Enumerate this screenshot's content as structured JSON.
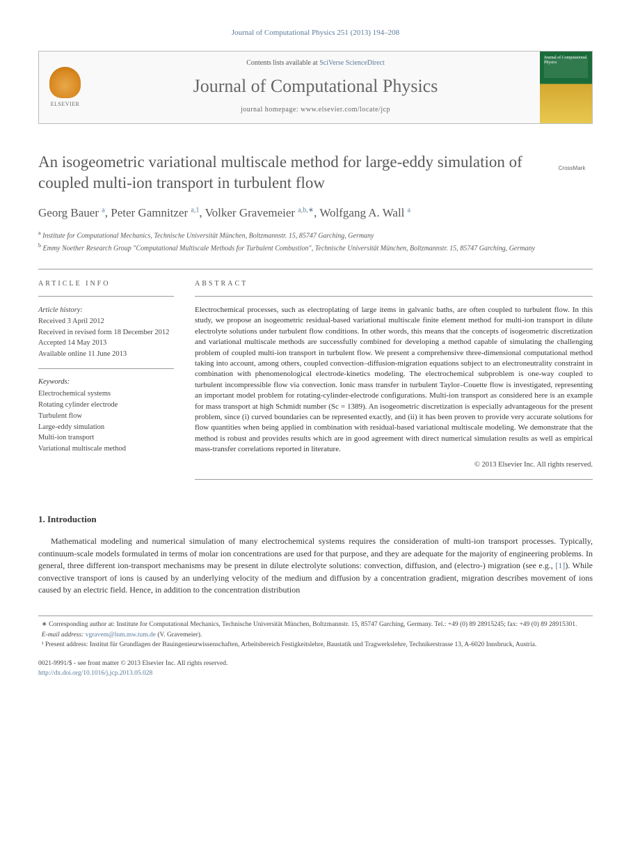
{
  "header_ref": {
    "text": "Journal of Computational Physics 251 (2013) 194–208",
    "color": "#5b7a9a"
  },
  "header_box": {
    "contents_prefix": "Contents lists available at ",
    "contents_link": "SciVerse ScienceDirect",
    "journal_name": "Journal of Computational Physics",
    "homepage_label": "journal homepage: www.elsevier.com/locate/jcp",
    "publisher_label": "ELSEVIER",
    "cover_text": "Journal of Computational Physics"
  },
  "title": "An isogeometric variational multiscale method for large-eddy simulation of coupled multi-ion transport in turbulent flow",
  "crossmark_label": "CrossMark",
  "authors_html": "Georg Bauer <sup>a</sup>, Peter Gamnitzer <sup>a,1</sup>, Volker Gravemeier <sup>a,b,∗</sup>, Wolfgang A. Wall <sup>a</sup>",
  "affiliations": {
    "a": "Institute for Computational Mechanics, Technische Universität München, Boltzmannstr. 15, 85747 Garching, Germany",
    "b": "Emmy Noether Research Group \"Computational Multiscale Methods for Turbulent Combustion\", Technische Universität München, Boltzmannstr. 15, 85747 Garching, Germany"
  },
  "article_info": {
    "section_label": "ARTICLE INFO",
    "history_label": "Article history:",
    "history": [
      "Received 3 April 2012",
      "Received in revised form 18 December 2012",
      "Accepted 14 May 2013",
      "Available online 11 June 2013"
    ],
    "keywords_label": "Keywords:",
    "keywords": [
      "Electrochemical systems",
      "Rotating cylinder electrode",
      "Turbulent flow",
      "Large-eddy simulation",
      "Multi-ion transport",
      "Variational multiscale method"
    ]
  },
  "abstract": {
    "section_label": "ABSTRACT",
    "text": "Electrochemical processes, such as electroplating of large items in galvanic baths, are often coupled to turbulent flow. In this study, we propose an isogeometric residual-based variational multiscale finite element method for multi-ion transport in dilute electrolyte solutions under turbulent flow conditions. In other words, this means that the concepts of isogeometric discretization and variational multiscale methods are successfully combined for developing a method capable of simulating the challenging problem of coupled multi-ion transport in turbulent flow. We present a comprehensive three-dimensional computational method taking into account, among others, coupled convection–diffusion-migration equations subject to an electroneutrality constraint in combination with phenomenological electrode-kinetics modeling. The electrochemical subproblem is one-way coupled to turbulent incompressible flow via convection. Ionic mass transfer in turbulent Taylor–Couette flow is investigated, representing an important model problem for rotating-cylinder-electrode configurations. Multi-ion transport as considered here is an example for mass transport at high Schmidt number (Sc = 1389). An isogeometric discretization is especially advantageous for the present problem, since (i) curved boundaries can be represented exactly, and (ii) it has been proven to provide very accurate solutions for flow quantities when being applied in combination with residual-based variational multiscale modeling. We demonstrate that the method is robust and provides results which are in good agreement with direct numerical simulation results as well as empirical mass-transfer correlations reported in literature.",
    "copyright": "© 2013 Elsevier Inc. All rights reserved."
  },
  "introduction": {
    "heading": "1. Introduction",
    "text": "Mathematical modeling and numerical simulation of many electrochemical systems requires the consideration of multi-ion transport processes. Typically, continuum-scale models formulated in terms of molar ion concentrations are used for that purpose, and they are adequate for the majority of engineering problems. In general, three different ion-transport mechanisms may be present in dilute electrolyte solutions: convection, diffusion, and (electro-) migration (see e.g., [1]). While convective transport of ions is caused by an underlying velocity of the medium and diffusion by a concentration gradient, migration describes movement of ions caused by an electric field. Hence, in addition to the concentration distribution"
  },
  "footnotes": {
    "corresponding": "∗ Corresponding author at: Institute for Computational Mechanics, Technische Universität München, Boltzmannstr. 15, 85747 Garching, Germany. Tel.: +49 (0) 89 28915245; fax: +49 (0) 89 28915301.",
    "email_label": "E-mail address: ",
    "email": "vgravem@lnm.mw.tum.de",
    "email_person": " (V. Gravemeier).",
    "present": "¹ Present address: Institut für Grundlagen der Bauingenieurwissenschaften, Arbeitsbereich Festigkeitslehre, Baustatik und Tragwerkslehre, Technikerstrasse 13, A-6020 Innsbruck, Austria."
  },
  "footer": {
    "issn_line": "0021-9991/$ - see front matter © 2013 Elsevier Inc. All rights reserved.",
    "doi": "http://dx.doi.org/10.1016/j.jcp.2013.05.028"
  },
  "colors": {
    "link": "#5b7a9a",
    "heading": "#585858",
    "text": "#333333",
    "rule": "#999999"
  }
}
